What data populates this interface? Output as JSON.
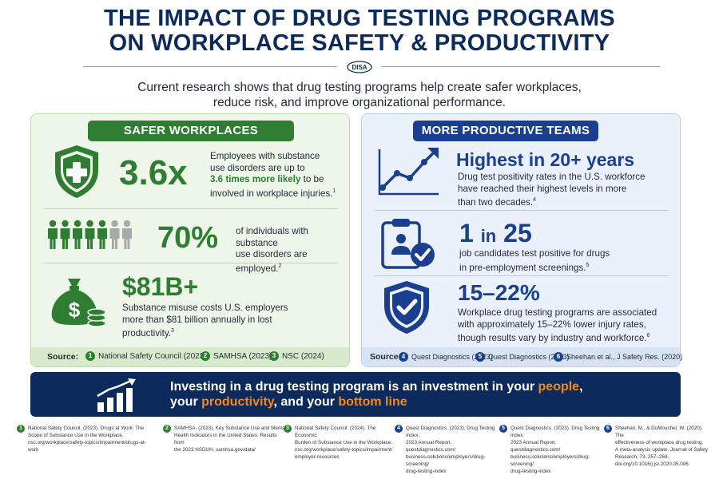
{
  "title": {
    "line1": "THE IMPACT OF DRUG TESTING PROGRAMS",
    "line2": "ON WORKPLACE SAFETY & PRODUCTIVITY",
    "logo_text": "DISA"
  },
  "intro": {
    "line1": "Current research shows that drug testing programs help create safer workplaces,",
    "line2": "reduce risk, and improve organizational performance."
  },
  "safer": {
    "heading": "SAFER WORKPLACES",
    "stat1": {
      "value": "3.6x",
      "text_a": "Employees with substance",
      "text_b": "use disorders are up to",
      "highlight": "3.6 times more likely",
      "text_c": " to be",
      "text_d": "involved in workplace injuries.",
      "ref": "1"
    },
    "stat2": {
      "value": "70%",
      "text_a": "of individuals with substance",
      "text_b": "use disorders are employed.",
      "ref": "2",
      "people_total": 7,
      "people_highlighted": 5
    },
    "stat3": {
      "value": "$81B+",
      "text_a": "Substance misuse costs U.S. employers",
      "text_b": "more than $81 billion annually in lost",
      "text_c": "productivity.",
      "ref": "3"
    },
    "sources_label": "Source:",
    "sources": [
      {
        "num": "1",
        "label": "National Safety Council (2023)"
      },
      {
        "num": "2",
        "label": "SAMHSA (2023)"
      },
      {
        "num": "3",
        "label": "NSC (2024)"
      }
    ]
  },
  "productive": {
    "heading": "MORE PRODUCTIVE TEAMS",
    "stat1": {
      "value": "Highest in 20+ years",
      "text_a": "Drug test positivity rates in the U.S. workforce",
      "text_b": "have reached their highest levels in more",
      "text_c": "than two decades.",
      "ref": "4"
    },
    "stat2": {
      "value_a": "1",
      "value_in": "in",
      "value_b": "25",
      "text_a": "job candidates test positive for drugs",
      "text_b": "in pre-employment screenings.",
      "ref": "5"
    },
    "stat3": {
      "value": "15–22%",
      "text_a": "Workplace drug testing programs are associated",
      "text_b": "with approximately 15–22% lower injury rates,",
      "text_c": "though results vary by industry and workforce.",
      "ref": "6"
    },
    "sources_label": "Source:",
    "sources": [
      {
        "num": "4",
        "label": "Quest Diagnostics (2023)"
      },
      {
        "num": "5",
        "label": "Quest Diagnostics (2023)"
      },
      {
        "num": "6",
        "label": "Sheehan et al., J Safety Res. (2020)"
      }
    ]
  },
  "banner": {
    "a": "Investing in a drug testing program is an investment in your ",
    "people": "people",
    "b": ",",
    "c": "your ",
    "productivity": "productivity",
    "d": ", and your ",
    "bottom_line": "bottom line"
  },
  "references": [
    {
      "num": "1",
      "lines": [
        "National Safety Council. (2023). Drugs at Work: The",
        "Scope of Substance Use in the Workplace.",
        "nsc.org/workplace/safety-topics/impairment/drugs-at-work"
      ]
    },
    {
      "num": "2",
      "lines": [
        "SAMHSA. (2023). Key Substance Use and Mental",
        "Health Indicators in the United States: Results from",
        "the 2023 NSDUH. samhsa.gov/data/"
      ]
    },
    {
      "num": "3",
      "lines": [
        "National Safety Council. (2024). The Economic",
        "Burden of Substance Use in the Workplace.",
        "nsc.org/workplace/safety-topics/impairment/",
        "employer-resources"
      ]
    },
    {
      "num": "4",
      "lines": [
        "Quest Diagnostics. (2023). Drug Testing Index:",
        "2023 Annual Report. questdiagnostics.com/",
        "business-solutions/employers/drug-screening/",
        "drug-testing-index"
      ]
    },
    {
      "num": "5",
      "lines": [
        "Quest Diagnostics. (2023). Drug Testing Index:",
        "2023 Annual Report. questdiagnostics.com/",
        "business-solutions/employers/drug-screening/",
        "drug-testing-index"
      ]
    },
    {
      "num": "6",
      "lines": [
        "Sheehan, M., & DuMouchel, W. (2020). The",
        "effectiveness of workplace drug testing:",
        "A meta-analysis update. Journal of Safety",
        "Research, 73, 257–269.",
        "doi.org/10.1016/j.jsr.2020.05.006"
      ]
    }
  ],
  "colors": {
    "navy": "#0d2a5c",
    "green": "#2e7d32",
    "blue": "#1a3f8f",
    "orange": "#f08a1c"
  }
}
